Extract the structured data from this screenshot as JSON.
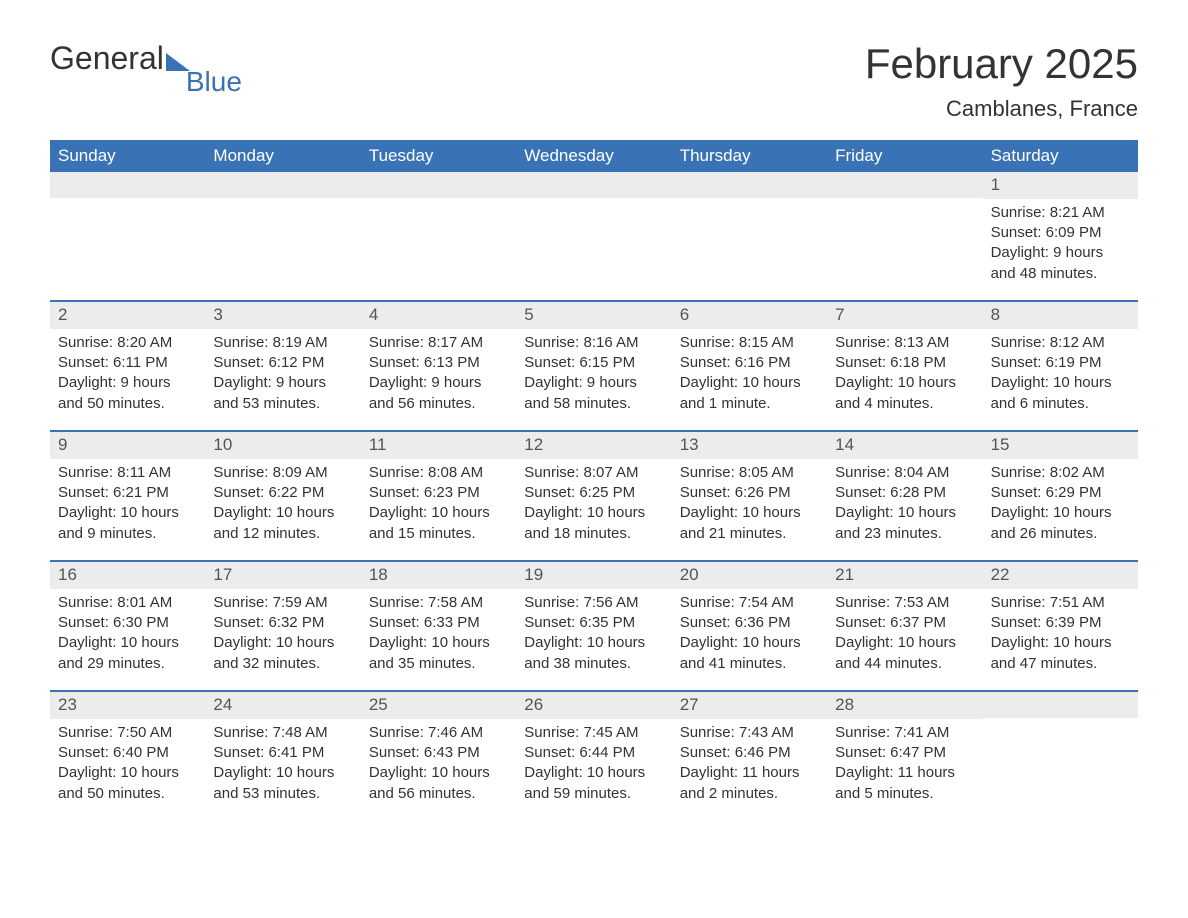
{
  "brand": {
    "text1": "General",
    "text2": "Blue"
  },
  "header": {
    "month_title": "February 2025",
    "location": "Camblanes, France"
  },
  "styling": {
    "header_bg": "#3a73b5",
    "header_text": "#ffffff",
    "daynum_bg": "#ececec",
    "week_border": "#3a73b5",
    "body_text": "#333333",
    "font_family": "Arial",
    "title_fontsize_pt": 32,
    "location_fontsize_pt": 17,
    "weekday_fontsize_pt": 13,
    "cell_fontsize_pt": 11
  },
  "weekdays": [
    "Sunday",
    "Monday",
    "Tuesday",
    "Wednesday",
    "Thursday",
    "Friday",
    "Saturday"
  ],
  "weeks": [
    [
      null,
      null,
      null,
      null,
      null,
      null,
      {
        "num": "1",
        "sunrise": "Sunrise: 8:21 AM",
        "sunset": "Sunset: 6:09 PM",
        "day1": "Daylight: 9 hours",
        "day2": "and 48 minutes."
      }
    ],
    [
      {
        "num": "2",
        "sunrise": "Sunrise: 8:20 AM",
        "sunset": "Sunset: 6:11 PM",
        "day1": "Daylight: 9 hours",
        "day2": "and 50 minutes."
      },
      {
        "num": "3",
        "sunrise": "Sunrise: 8:19 AM",
        "sunset": "Sunset: 6:12 PM",
        "day1": "Daylight: 9 hours",
        "day2": "and 53 minutes."
      },
      {
        "num": "4",
        "sunrise": "Sunrise: 8:17 AM",
        "sunset": "Sunset: 6:13 PM",
        "day1": "Daylight: 9 hours",
        "day2": "and 56 minutes."
      },
      {
        "num": "5",
        "sunrise": "Sunrise: 8:16 AM",
        "sunset": "Sunset: 6:15 PM",
        "day1": "Daylight: 9 hours",
        "day2": "and 58 minutes."
      },
      {
        "num": "6",
        "sunrise": "Sunrise: 8:15 AM",
        "sunset": "Sunset: 6:16 PM",
        "day1": "Daylight: 10 hours",
        "day2": "and 1 minute."
      },
      {
        "num": "7",
        "sunrise": "Sunrise: 8:13 AM",
        "sunset": "Sunset: 6:18 PM",
        "day1": "Daylight: 10 hours",
        "day2": "and 4 minutes."
      },
      {
        "num": "8",
        "sunrise": "Sunrise: 8:12 AM",
        "sunset": "Sunset: 6:19 PM",
        "day1": "Daylight: 10 hours",
        "day2": "and 6 minutes."
      }
    ],
    [
      {
        "num": "9",
        "sunrise": "Sunrise: 8:11 AM",
        "sunset": "Sunset: 6:21 PM",
        "day1": "Daylight: 10 hours",
        "day2": "and 9 minutes."
      },
      {
        "num": "10",
        "sunrise": "Sunrise: 8:09 AM",
        "sunset": "Sunset: 6:22 PM",
        "day1": "Daylight: 10 hours",
        "day2": "and 12 minutes."
      },
      {
        "num": "11",
        "sunrise": "Sunrise: 8:08 AM",
        "sunset": "Sunset: 6:23 PM",
        "day1": "Daylight: 10 hours",
        "day2": "and 15 minutes."
      },
      {
        "num": "12",
        "sunrise": "Sunrise: 8:07 AM",
        "sunset": "Sunset: 6:25 PM",
        "day1": "Daylight: 10 hours",
        "day2": "and 18 minutes."
      },
      {
        "num": "13",
        "sunrise": "Sunrise: 8:05 AM",
        "sunset": "Sunset: 6:26 PM",
        "day1": "Daylight: 10 hours",
        "day2": "and 21 minutes."
      },
      {
        "num": "14",
        "sunrise": "Sunrise: 8:04 AM",
        "sunset": "Sunset: 6:28 PM",
        "day1": "Daylight: 10 hours",
        "day2": "and 23 minutes."
      },
      {
        "num": "15",
        "sunrise": "Sunrise: 8:02 AM",
        "sunset": "Sunset: 6:29 PM",
        "day1": "Daylight: 10 hours",
        "day2": "and 26 minutes."
      }
    ],
    [
      {
        "num": "16",
        "sunrise": "Sunrise: 8:01 AM",
        "sunset": "Sunset: 6:30 PM",
        "day1": "Daylight: 10 hours",
        "day2": "and 29 minutes."
      },
      {
        "num": "17",
        "sunrise": "Sunrise: 7:59 AM",
        "sunset": "Sunset: 6:32 PM",
        "day1": "Daylight: 10 hours",
        "day2": "and 32 minutes."
      },
      {
        "num": "18",
        "sunrise": "Sunrise: 7:58 AM",
        "sunset": "Sunset: 6:33 PM",
        "day1": "Daylight: 10 hours",
        "day2": "and 35 minutes."
      },
      {
        "num": "19",
        "sunrise": "Sunrise: 7:56 AM",
        "sunset": "Sunset: 6:35 PM",
        "day1": "Daylight: 10 hours",
        "day2": "and 38 minutes."
      },
      {
        "num": "20",
        "sunrise": "Sunrise: 7:54 AM",
        "sunset": "Sunset: 6:36 PM",
        "day1": "Daylight: 10 hours",
        "day2": "and 41 minutes."
      },
      {
        "num": "21",
        "sunrise": "Sunrise: 7:53 AM",
        "sunset": "Sunset: 6:37 PM",
        "day1": "Daylight: 10 hours",
        "day2": "and 44 minutes."
      },
      {
        "num": "22",
        "sunrise": "Sunrise: 7:51 AM",
        "sunset": "Sunset: 6:39 PM",
        "day1": "Daylight: 10 hours",
        "day2": "and 47 minutes."
      }
    ],
    [
      {
        "num": "23",
        "sunrise": "Sunrise: 7:50 AM",
        "sunset": "Sunset: 6:40 PM",
        "day1": "Daylight: 10 hours",
        "day2": "and 50 minutes."
      },
      {
        "num": "24",
        "sunrise": "Sunrise: 7:48 AM",
        "sunset": "Sunset: 6:41 PM",
        "day1": "Daylight: 10 hours",
        "day2": "and 53 minutes."
      },
      {
        "num": "25",
        "sunrise": "Sunrise: 7:46 AM",
        "sunset": "Sunset: 6:43 PM",
        "day1": "Daylight: 10 hours",
        "day2": "and 56 minutes."
      },
      {
        "num": "26",
        "sunrise": "Sunrise: 7:45 AM",
        "sunset": "Sunset: 6:44 PM",
        "day1": "Daylight: 10 hours",
        "day2": "and 59 minutes."
      },
      {
        "num": "27",
        "sunrise": "Sunrise: 7:43 AM",
        "sunset": "Sunset: 6:46 PM",
        "day1": "Daylight: 11 hours",
        "day2": "and 2 minutes."
      },
      {
        "num": "28",
        "sunrise": "Sunrise: 7:41 AM",
        "sunset": "Sunset: 6:47 PM",
        "day1": "Daylight: 11 hours",
        "day2": "and 5 minutes."
      },
      null
    ]
  ]
}
